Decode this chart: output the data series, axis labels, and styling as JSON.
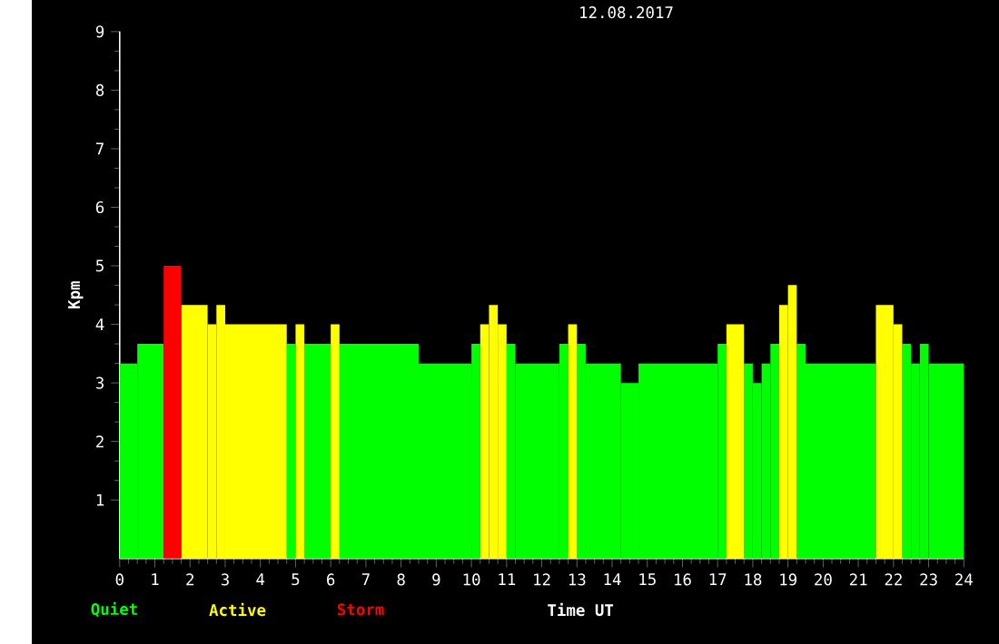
{
  "chart_data": {
    "type": "histogram",
    "title": "12.08.2017",
    "xlabel": "Time UT",
    "ylabel": "Kpm",
    "bins": [
      0,
      0.5,
      1.25,
      1.75,
      2.5,
      2.75,
      3,
      4.75,
      5,
      5.25,
      6,
      6.25,
      8.5,
      10,
      10.25,
      10.5,
      10.75,
      11,
      11.25,
      12.5,
      12.75,
      13,
      13.25,
      14.25,
      14.75,
      17,
      17.25,
      17.75,
      18,
      18.25,
      18.5,
      18.75,
      19,
      19.25,
      19.5,
      21.5,
      22,
      22.25,
      22.5,
      22.75,
      23,
      24
    ],
    "series": [
      {
        "name": "Quiet",
        "color": "#00ff00",
        "values": [
          3.33,
          3.67,
          null,
          null,
          null,
          null,
          null,
          3.67,
          null,
          3.67,
          null,
          3.67,
          3.33,
          3.67,
          null,
          null,
          null,
          3.67,
          3.33,
          3.67,
          null,
          3.67,
          3.33,
          3,
          3.33,
          3.67,
          null,
          3.33,
          3,
          3.33,
          3.67,
          null,
          null,
          3.67,
          3.33,
          null,
          null,
          3.67,
          3.33,
          3.67,
          3.33
        ]
      },
      {
        "name": "Active",
        "color": "#ffff00",
        "values": [
          null,
          null,
          null,
          4.33,
          4,
          4.33,
          4,
          null,
          4,
          null,
          4,
          null,
          null,
          null,
          4,
          4.33,
          4,
          null,
          null,
          null,
          4,
          null,
          null,
          null,
          null,
          null,
          4,
          null,
          null,
          null,
          null,
          4.33,
          4.67,
          null,
          null,
          4.33,
          4,
          null,
          null,
          null,
          null
        ]
      },
      {
        "name": "Storm",
        "color": "#ff0000",
        "values": [
          null,
          null,
          5,
          null,
          null,
          null,
          null,
          null,
          null,
          null,
          null,
          null,
          null,
          null,
          null,
          null,
          null,
          null,
          null,
          null,
          null,
          null,
          null,
          null,
          null,
          null,
          null,
          null,
          null,
          null,
          null,
          null,
          null,
          null,
          null,
          null,
          null,
          null,
          null,
          null,
          null
        ]
      }
    ],
    "xlim": [
      0,
      24
    ],
    "xticks": [
      0,
      1,
      2,
      3,
      4,
      5,
      6,
      7,
      8,
      9,
      10,
      11,
      12,
      13,
      14,
      15,
      16,
      17,
      18,
      19,
      20,
      21,
      22,
      23,
      24
    ],
    "ylim": [
      0,
      9
    ],
    "yticks": [
      1,
      2,
      3,
      4,
      5,
      6,
      7,
      8,
      9
    ],
    "legend": "bottom left"
  }
}
